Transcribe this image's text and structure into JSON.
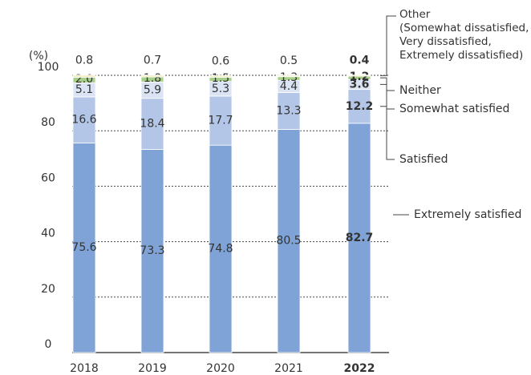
{
  "chart_data": {
    "type": "stacked_bar",
    "y_label": "(%)",
    "categories": [
      "2018",
      "2019",
      "2020",
      "2021",
      "2022"
    ],
    "series": [
      {
        "name": "Extremely satisfied",
        "color": "#7fa3d6",
        "values": [
          75.6,
          73.3,
          74.8,
          80.5,
          82.7
        ]
      },
      {
        "name": "Satisfied",
        "color": "#b3c6e8",
        "values": [
          16.6,
          18.4,
          17.7,
          13.3,
          12.2
        ]
      },
      {
        "name": "Somewhat satisfied",
        "color": "#dbe4f4",
        "values": [
          5.1,
          5.9,
          5.3,
          4.4,
          3.6
        ]
      },
      {
        "name": "Neither",
        "color": "#a8cf8a",
        "values": [
          2.0,
          1.8,
          1.5,
          1.3,
          1.2
        ],
        "value_labels": [
          "2.0",
          "1.8",
          "1.5",
          "1.3",
          "1.2"
        ]
      },
      {
        "name": "Other\n(Somewhat dissatisfied,\nVery dissatisfied,\nExtremely dissatisfied)",
        "color": "#f3efc4",
        "values": [
          0.8,
          0.7,
          0.6,
          0.5,
          0.4
        ]
      }
    ],
    "ylim": [
      0,
      100
    ],
    "yticks": [
      0,
      20,
      40,
      60,
      80,
      100
    ],
    "grid": true
  }
}
